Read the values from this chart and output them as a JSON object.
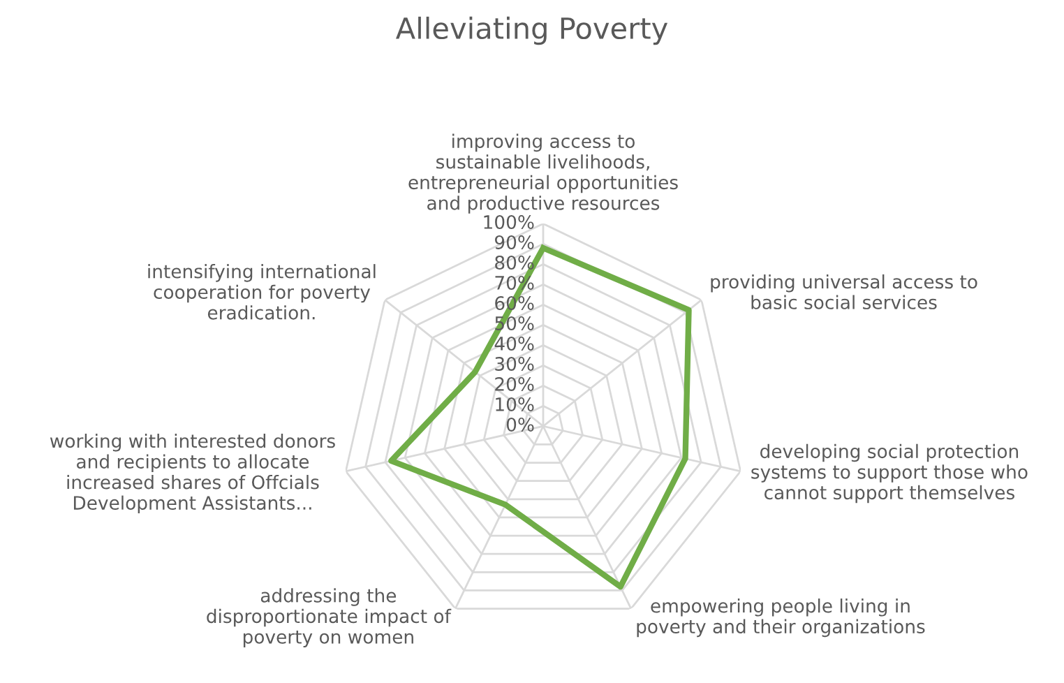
{
  "chart_data": {
    "type": "radar",
    "title": "Alleviating Poverty",
    "categories": [
      "improving access to\nsustainable livelihoods,\nentrepreneurial opportunities\nand productive resources",
      "providing universal access to\nbasic social services",
      "developing social protection\nsystems to support those who\ncannot support themselves",
      "empowering people living in\npoverty and their organizations",
      "addressing the\ndisproportionate impact of\npoverty on women",
      "working with interested donors\nand recipients to allocate\nincreased shares of Offcials\nDevelopment Assistants...",
      "intensifying international\ncooperation for poverty\neradication."
    ],
    "series": [
      {
        "color": "#70ad47",
        "values": [
          0.88,
          0.92,
          0.72,
          0.88,
          0.43,
          0.77,
          0.43
        ]
      }
    ],
    "ylim": [
      0,
      1
    ],
    "yticks": [
      {
        "value": 0,
        "label": "0%"
      },
      {
        "value": 0.1,
        "label": "10%"
      },
      {
        "value": 0.2,
        "label": "20%"
      },
      {
        "value": 0.3,
        "label": "30%"
      },
      {
        "value": 0.4,
        "label": "40%"
      },
      {
        "value": 0.5,
        "label": "50%"
      },
      {
        "value": 0.6,
        "label": "60%"
      },
      {
        "value": 0.7,
        "label": "70%"
      },
      {
        "value": 0.8,
        "label": "80%"
      },
      {
        "value": 0.9,
        "label": "90%"
      },
      {
        "value": 1,
        "label": "100%"
      }
    ],
    "grid": true,
    "marker": "none",
    "line_style": "solid"
  }
}
